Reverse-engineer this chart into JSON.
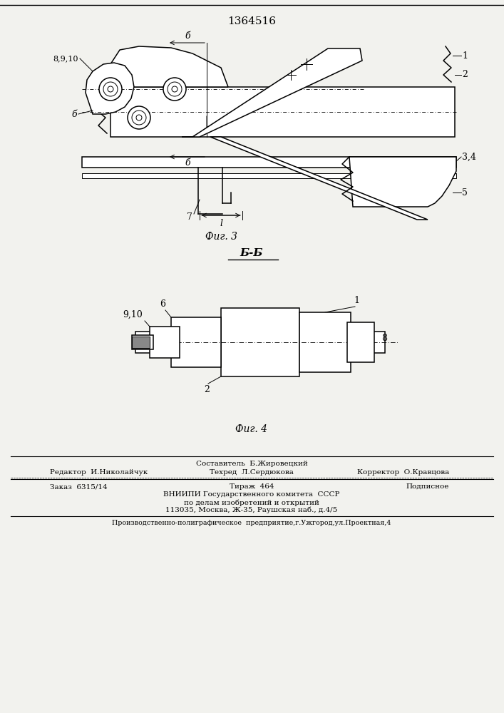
{
  "patent_number": "1364516",
  "background_color": "#f2f2ee",
  "fig3_caption": "Фиг. 3",
  "fig4_caption": "Фиг. 4",
  "section_label": "Б-Б",
  "footer": {
    "sestavitel_label": "Составитель  Б.Жировецкий",
    "redaktor_label": "Редактор  И.Николайчук",
    "tehred_label": "Техред  Л.Сердюкова",
    "korrektor_label": "Корректор  О.Кравцова",
    "zakaz": "Заказ  6315/14",
    "tirazh": "Тираж  464",
    "podpisnoe": "Подписное",
    "vnipi_line1": "ВНИИПИ Государственного комитета  СССР",
    "vnipi_line2": "по делам изобретений и открытий",
    "vnipi_line3": "113035, Москва, Ж-35, Раушская наб., д.4/5",
    "printer": "Производственно-полиграфическое  предприятие,г.Ужгород,ул.Проектная,4"
  }
}
